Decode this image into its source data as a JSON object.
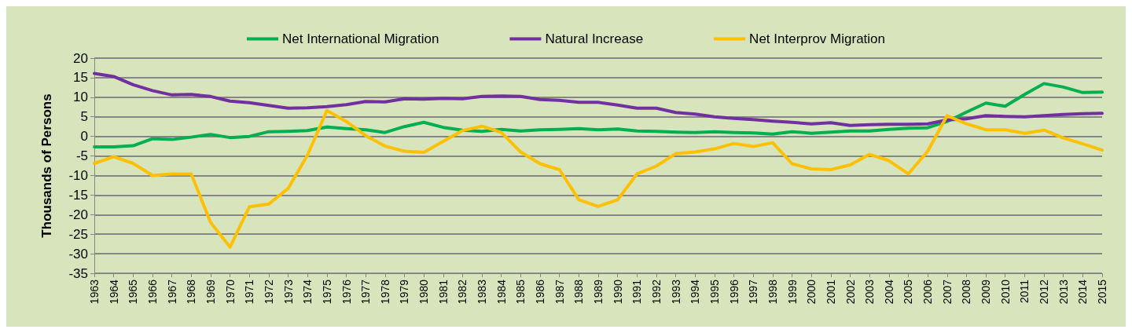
{
  "chart_data": {
    "type": "line",
    "ylabel": "Thousands of Persons",
    "categories": [
      "1963",
      "1964",
      "1965",
      "1966",
      "1967",
      "1968",
      "1969",
      "1970",
      "1971",
      "1972",
      "1973",
      "1974",
      "1975",
      "1976",
      "1977",
      "1978",
      "1979",
      "1980",
      "1981",
      "1982",
      "1983",
      "1984",
      "1985",
      "1986",
      "1987",
      "1988",
      "1989",
      "1990",
      "1991",
      "1992",
      "1993",
      "1994",
      "1995",
      "1996",
      "1997",
      "1998",
      "1999",
      "2000",
      "2001",
      "2002",
      "2003",
      "2004",
      "2005",
      "2006",
      "2007",
      "2008",
      "2009",
      "2010",
      "2011",
      "2012",
      "2013",
      "2014",
      "2015"
    ],
    "series": [
      {
        "name": "Net International Migration",
        "color": "#00b050",
        "values": [
          -2.7,
          -2.7,
          -2.4,
          -0.6,
          -0.8,
          -0.2,
          0.5,
          -0.3,
          0,
          1.2,
          1.3,
          1.5,
          2.4,
          2.0,
          1.7,
          1.0,
          2.5,
          3.6,
          2.3,
          1.6,
          1.3,
          1.8,
          1.4,
          1.7,
          1.8,
          2.0,
          1.7,
          1.9,
          1.4,
          1.3,
          1.1,
          1.0,
          1.2,
          1.0,
          0.9,
          0.6,
          1.2,
          0.8,
          1.1,
          1.4,
          1.4,
          1.8,
          2.1,
          2.2,
          3.8,
          6.2,
          8.5,
          7.7,
          10.7,
          13.5,
          12.6,
          11.2,
          11.3
        ]
      },
      {
        "name": "Natural Increase",
        "color": "#7030a0",
        "values": [
          16.1,
          15.3,
          13.2,
          11.7,
          10.6,
          10.7,
          10.2,
          9.0,
          8.6,
          7.9,
          7.2,
          7.3,
          7.6,
          8.1,
          8.9,
          8.8,
          9.6,
          9.5,
          9.7,
          9.6,
          10.2,
          10.3,
          10.2,
          9.4,
          9.2,
          8.7,
          8.7,
          8.0,
          7.2,
          7.2,
          6.1,
          5.7,
          5.0,
          4.6,
          4.3,
          3.9,
          3.6,
          3.2,
          3.5,
          2.8,
          3.0,
          3.1,
          3.1,
          3.2,
          4.2,
          4.5,
          5.3,
          5.1,
          5.0,
          5.3,
          5.6,
          5.8,
          5.9
        ]
      },
      {
        "name": "Net Interprov Migration",
        "color": "#ffc000",
        "values": [
          -6.9,
          -5.2,
          -6.9,
          -10.0,
          -9.6,
          -9.6,
          -22,
          -28.3,
          -18,
          -17.3,
          -13.3,
          -4.8,
          6.6,
          3.8,
          0.2,
          -2.5,
          -3.8,
          -4.1,
          -1.3,
          1.5,
          2.6,
          1.0,
          -4.0,
          -7.0,
          -8.5,
          -16.2,
          -17.9,
          -16.2,
          -9.6,
          -7.6,
          -4.4,
          -4.0,
          -3.2,
          -1.8,
          -2.6,
          -1.6,
          -7.0,
          -8.3,
          -8.5,
          -7.3,
          -4.6,
          -6.2,
          -9.6,
          -3.8,
          5.3,
          3.2,
          1.7,
          1.7,
          0.8,
          1.6,
          -0.4,
          -1.9,
          -3.5
        ]
      }
    ],
    "ylim": [
      -35,
      20
    ],
    "yticks": [
      -35,
      -30,
      -25,
      -20,
      -15,
      -10,
      -5,
      0,
      5,
      10,
      15,
      20
    ],
    "grid": "y",
    "legend": "top",
    "marker": "none",
    "line_style": "solid"
  }
}
